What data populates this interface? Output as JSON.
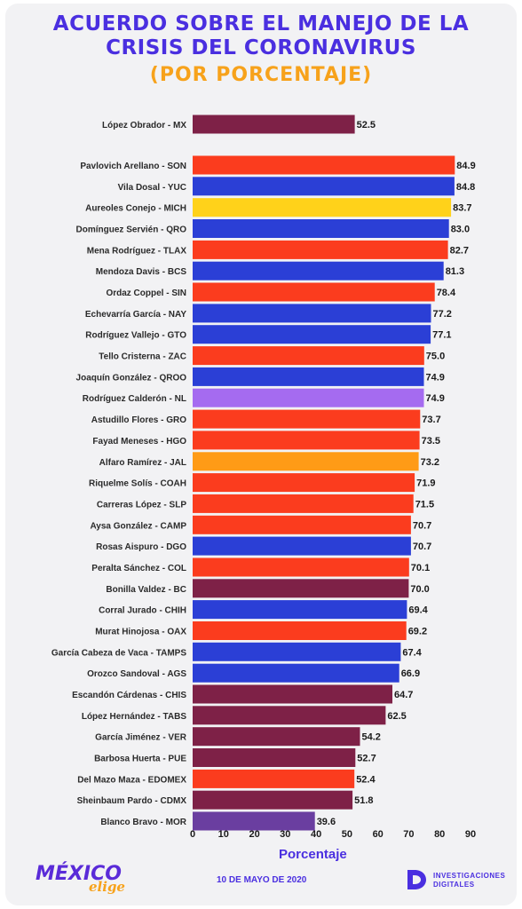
{
  "header": {
    "title_line1": "ACUERDO SOBRE EL MANEJO DE LA",
    "title_line2": "CRISIS DEL CORONAVIRUS",
    "subtitle": "(POR PORCENTAJE)"
  },
  "footer": {
    "brand": "MÉXICO",
    "brand_sub": "elige",
    "date": "10 DE MAYO DE 2020",
    "org_line1": "INVESTIGACIONES",
    "org_line2": "DIGITALES"
  },
  "colors": {
    "maroon": "#7e2147",
    "red": "#fb3c1e",
    "blue": "#2b3fd6",
    "yellow": "#ffd21a",
    "lilac": "#a56bf0",
    "orange": "#ff7a10",
    "mango": "#ff9b16",
    "purple": "#6a3ea0",
    "title": "#4a2fe0",
    "accent": "#f7a21b"
  },
  "chart_data": {
    "type": "bar",
    "orientation": "horizontal",
    "xlabel": "Porcentaje",
    "xlim": [
      0,
      90
    ],
    "xticks": [
      0,
      10,
      20,
      30,
      40,
      50,
      60,
      70,
      80,
      90
    ],
    "grid": false,
    "categories": [
      "López Obrador - MX",
      "Pavlovich Arellano - SON",
      "Vila Dosal - YUC",
      "Aureoles Conejo - MICH",
      "Domínguez Servién - QRO",
      "Mena Rodríguez - TLAX",
      "Mendoza Davis - BCS",
      "Ordaz Coppel - SIN",
      "Echevarría García - NAY",
      "Rodríguez Vallejo - GTO",
      "Tello Cristerna - ZAC",
      "Joaquín González - QROO",
      "Rodríguez Calderón - NL",
      "Astudillo Flores - GRO",
      "Fayad Meneses - HGO",
      "Alfaro Ramírez - JAL",
      "Riquelme Solís - COAH",
      "Carreras López - SLP",
      "Aysa González - CAMP",
      "Rosas Aispuro - DGO",
      "Peralta Sánchez - COL",
      "Bonilla Valdez - BC",
      "Corral Jurado - CHIH",
      "Murat Hinojosa - OAX",
      "García Cabeza de Vaca - TAMPS",
      "Orozco Sandoval - AGS",
      "Escandón Cárdenas - CHIS",
      "López Hernández - TABS",
      "García Jiménez - VER",
      "Barbosa Huerta - PUE",
      "Del Mazo Maza - EDOMEX",
      "Sheinbaum Pardo - CDMX",
      "Blanco Bravo - MOR"
    ],
    "values": [
      52.5,
      84.9,
      84.8,
      83.7,
      83.0,
      82.7,
      81.3,
      78.4,
      77.2,
      77.1,
      75.0,
      74.9,
      74.9,
      73.7,
      73.5,
      73.2,
      71.9,
      71.5,
      70.7,
      70.7,
      70.1,
      70.0,
      69.4,
      69.2,
      67.4,
      66.9,
      64.7,
      62.5,
      54.2,
      52.7,
      52.4,
      51.8,
      39.6
    ],
    "value_labels": [
      "52.5",
      "84.9",
      "84.8",
      "83.7",
      "83.0",
      "82.7",
      "81.3",
      "78.4",
      "77.2",
      "77.1",
      "75.0",
      "74.9",
      "74.9",
      "73.7",
      "73.5",
      "73.2",
      "71.9",
      "71.5",
      "70.7",
      "70.7",
      "70.1",
      "70.0",
      "69.4",
      "69.2",
      "67.4",
      "66.9",
      "64.7",
      "62.5",
      "54.2",
      "52.7",
      "52.4",
      "51.8",
      "39.6"
    ],
    "bar_colors": [
      "maroon",
      "red",
      "blue",
      "yellow",
      "blue",
      "red",
      "blue",
      "red",
      "blue",
      "blue",
      "red",
      "blue",
      "lilac",
      "red",
      "red",
      "mango",
      "red",
      "red",
      "red",
      "blue",
      "red",
      "maroon",
      "blue",
      "red",
      "blue",
      "blue",
      "maroon",
      "maroon",
      "maroon",
      "maroon",
      "red",
      "maroon",
      "purple"
    ]
  }
}
